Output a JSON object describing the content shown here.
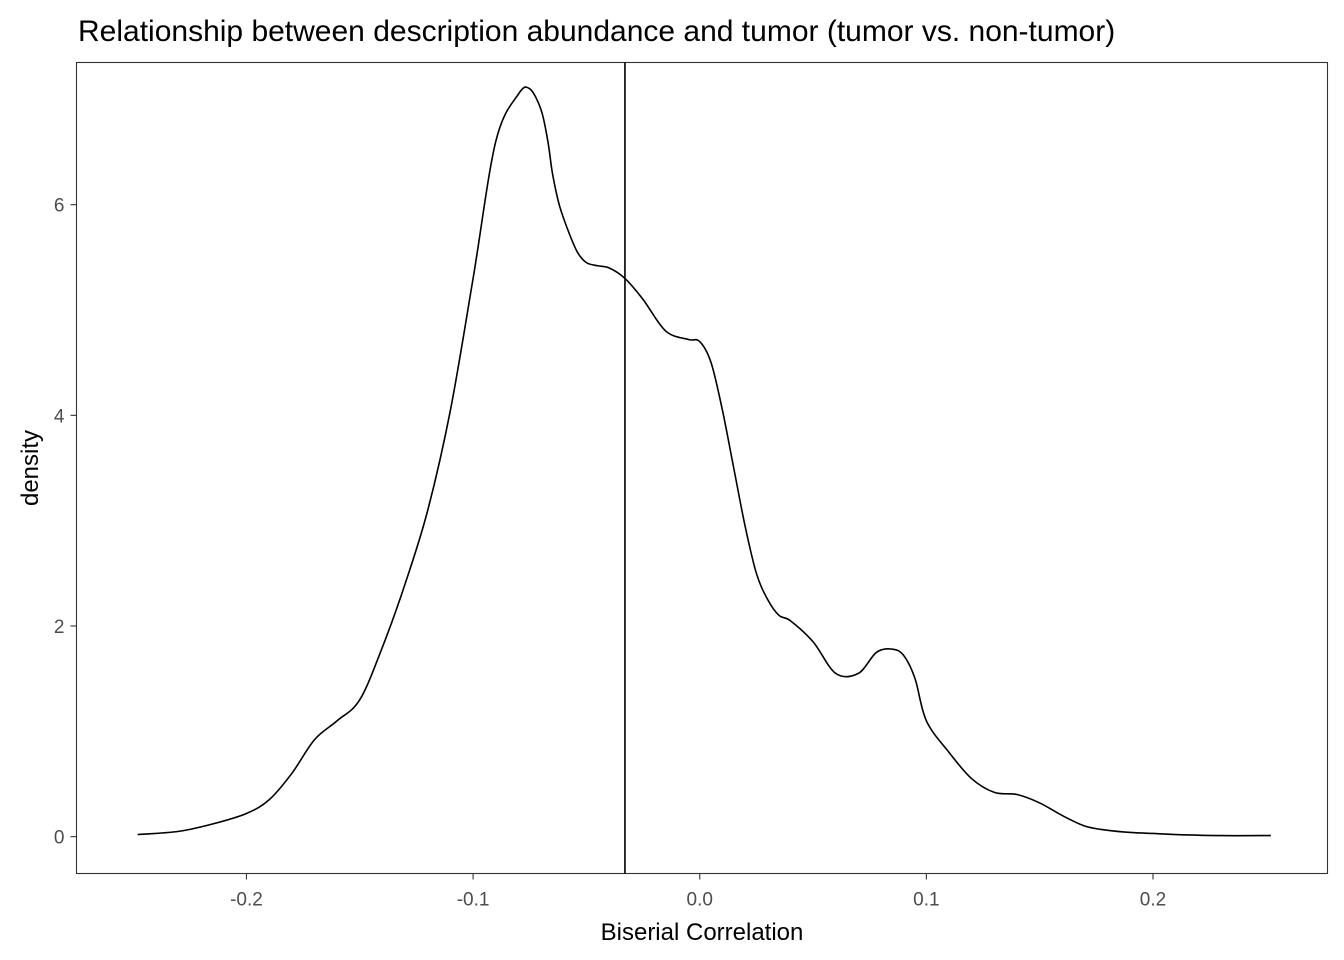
{
  "chart_data": {
    "type": "line",
    "title": "Relationship between description abundance and tumor (tumor vs. non-tumor)",
    "xlabel": "Biserial Correlation",
    "ylabel": "density",
    "xlim": [
      -0.275,
      0.277
    ],
    "ylim": [
      -0.35,
      7.35
    ],
    "x_ticks": [
      -0.2,
      -0.1,
      0.0,
      0.1,
      0.2
    ],
    "x_tick_labels": [
      "-0.2",
      "-0.1",
      "0.0",
      "0.1",
      "0.2"
    ],
    "y_ticks": [
      0,
      2,
      4,
      6
    ],
    "y_tick_labels": [
      "0",
      "2",
      "4",
      "6"
    ],
    "grid": false,
    "legend": "none",
    "vline_x": -0.033,
    "line_color": "#000000",
    "series": [
      {
        "x": [
          -0.248,
          -0.23,
          -0.215,
          -0.2,
          -0.19,
          -0.18,
          -0.17,
          -0.16,
          -0.15,
          -0.14,
          -0.13,
          -0.12,
          -0.11,
          -0.1,
          -0.09,
          -0.08,
          -0.075,
          -0.07,
          -0.067,
          -0.065,
          -0.062,
          -0.058,
          -0.054,
          -0.05,
          -0.045,
          -0.04,
          -0.033,
          -0.025,
          -0.015,
          -0.005,
          0.0,
          0.005,
          0.01,
          0.015,
          0.02,
          0.025,
          0.03,
          0.035,
          0.04,
          0.05,
          0.06,
          0.07,
          0.078,
          0.085,
          0.09,
          0.095,
          0.1,
          0.11,
          0.12,
          0.13,
          0.14,
          0.15,
          0.16,
          0.17,
          0.18,
          0.19,
          0.2,
          0.21,
          0.23,
          0.252
        ],
        "y": [
          0.02,
          0.05,
          0.12,
          0.22,
          0.35,
          0.6,
          0.92,
          1.1,
          1.3,
          1.8,
          2.4,
          3.1,
          4.05,
          5.3,
          6.6,
          7.05,
          7.1,
          6.9,
          6.6,
          6.3,
          6.0,
          5.75,
          5.55,
          5.45,
          5.42,
          5.4,
          5.3,
          5.1,
          4.8,
          4.72,
          4.7,
          4.5,
          4.05,
          3.5,
          2.95,
          2.5,
          2.25,
          2.1,
          2.05,
          1.85,
          1.55,
          1.55,
          1.75,
          1.78,
          1.72,
          1.5,
          1.1,
          0.8,
          0.55,
          0.42,
          0.4,
          0.32,
          0.2,
          0.1,
          0.06,
          0.04,
          0.03,
          0.02,
          0.01,
          0.01
        ]
      }
    ]
  }
}
